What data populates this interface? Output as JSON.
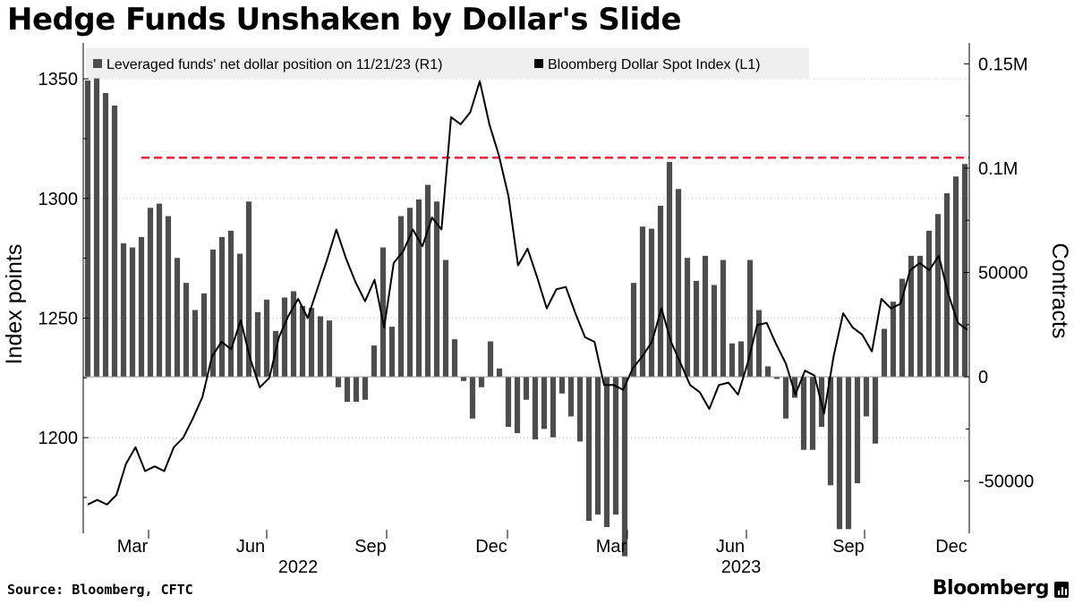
{
  "title": "Hedge Funds Unshaken by Dollar's Slide",
  "source": "Source: Bloomberg, CFTC",
  "brand": "Bloomberg",
  "colors": {
    "bars": "#4d4d4d",
    "line": "#000000",
    "threshold": "#e8203a",
    "legend_bg": "#efefef",
    "axis": "#000000",
    "grid": "#bdbdbd"
  },
  "chart_data": {
    "type": "bar+line",
    "legend_placement": "top",
    "grid": "dotted horizontal at left-axis ticks",
    "left_axis": {
      "label": "Index points",
      "range": [
        1160,
        1365
      ],
      "ticks": [
        1200,
        1250,
        1300,
        1350
      ]
    },
    "right_axis": {
      "label": "Contracts",
      "range": [
        -75000,
        160000
      ],
      "ticks": [
        -50000,
        0,
        50000,
        100000,
        150000
      ],
      "tick_labels": [
        "-50000",
        "0",
        "50000",
        "0.1M",
        "0.15M"
      ]
    },
    "x_month_labels": [
      "Mar",
      "Jun",
      "Sep",
      "Dec",
      "Mar",
      "Jun",
      "Sep",
      "Dec"
    ],
    "x_year_labels": [
      "2022",
      "2023"
    ],
    "threshold_line": {
      "axis": "right",
      "value": 105000,
      "style": "dashed"
    },
    "series": [
      {
        "name": "Leveraged funds' net dollar position on 11/21/23 (R1)",
        "kind": "bar",
        "axis": "right",
        "values": [
          142000,
          143000,
          136000,
          130000,
          64000,
          62000,
          67000,
          81000,
          83000,
          77000,
          57000,
          45000,
          32000,
          40000,
          61000,
          67000,
          70000,
          59000,
          84000,
          31000,
          37000,
          22000,
          38000,
          41000,
          34000,
          33000,
          29000,
          27000,
          -5000,
          -12000,
          -12000,
          -11000,
          15000,
          62000,
          24000,
          77000,
          81000,
          85000,
          92000,
          84000,
          56000,
          18000,
          -2000,
          -20000,
          -5000,
          17000,
          4000,
          -24000,
          -27000,
          -11000,
          -30000,
          -25000,
          -29000,
          -8000,
          -19000,
          -31000,
          -69000,
          -66000,
          -72000,
          -66000,
          -86000,
          45000,
          72000,
          71000,
          82000,
          103000,
          90000,
          57000,
          46000,
          58000,
          44000,
          56000,
          16000,
          17000,
          56000,
          32000,
          5000,
          -1000,
          -20000,
          -10000,
          -35000,
          -35000,
          -24000,
          -52000,
          -73000,
          -73000,
          -51000,
          -19000,
          -32000,
          23000,
          36000,
          47000,
          58000,
          58000,
          70000,
          78000,
          88000,
          96000,
          102000
        ]
      },
      {
        "name": "Bloomberg Dollar Spot Index (L1)",
        "kind": "line",
        "axis": "left",
        "values": [
          1172,
          1174,
          1172,
          1176,
          1189,
          1196,
          1186,
          1188,
          1186,
          1196,
          1200,
          1208,
          1217,
          1234,
          1240,
          1237,
          1249,
          1233,
          1221,
          1225,
          1242,
          1251,
          1258,
          1250,
          1262,
          1274,
          1287,
          1275,
          1265,
          1257,
          1266,
          1246,
          1273,
          1278,
          1287,
          1280,
          1292,
          1287,
          1334,
          1331,
          1336,
          1349,
          1331,
          1318,
          1301,
          1272,
          1279,
          1267,
          1254,
          1262,
          1263,
          1252,
          1242,
          1240,
          1222,
          1222,
          1220,
          1229,
          1234,
          1240,
          1254,
          1240,
          1231,
          1222,
          1219,
          1212,
          1222,
          1223,
          1218,
          1231,
          1247,
          1248,
          1239,
          1231,
          1218,
          1228,
          1226,
          1210,
          1234,
          1252,
          1246,
          1243,
          1236,
          1258,
          1254,
          1256,
          1270,
          1273,
          1270,
          1276,
          1260,
          1248,
          1245
        ]
      }
    ]
  }
}
